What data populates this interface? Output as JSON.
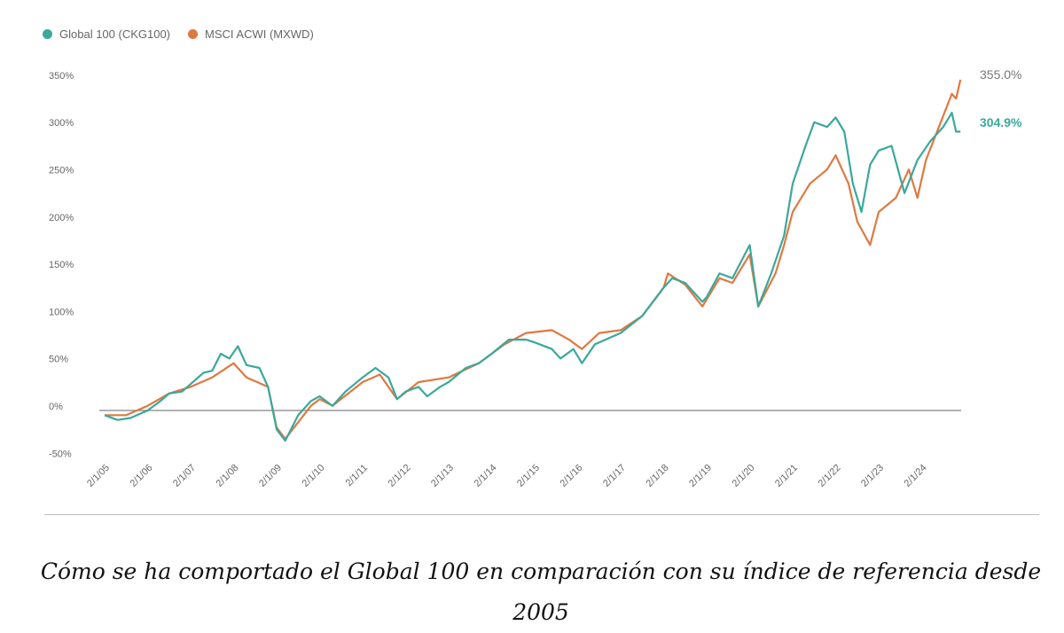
{
  "chart_data": {
    "type": "line",
    "title": "",
    "xlabel": "",
    "ylabel": "",
    "ylim": [
      -50,
      350
    ],
    "yticks": [
      "350%",
      "300%",
      "250%",
      "200%",
      "150%",
      "100%",
      "50%",
      "0%",
      "-50%"
    ],
    "ytick_values": [
      350,
      300,
      250,
      200,
      150,
      100,
      50,
      0,
      -50
    ],
    "xticks": [
      "2/1/05",
      "2/1/06",
      "2/1/07",
      "2/1/08",
      "2/1/09",
      "2/1/10",
      "2/1/11",
      "2/1/12",
      "2/1/13",
      "2/1/14",
      "2/1/15",
      "2/1/16",
      "2/1/17",
      "2/1/18",
      "2/1/19",
      "2/1/20",
      "2/1/21",
      "2/1/22",
      "2/1/23",
      "2/1/24"
    ],
    "xlim": [
      2005.0,
      2024.9
    ],
    "legend_position": "top-left",
    "series": [
      {
        "name": "Global 100 (CKG100)",
        "color": "#3aa89c",
        "end_label": "304.9%",
        "points": [
          [
            2005.0,
            -5
          ],
          [
            2005.3,
            -10
          ],
          [
            2005.6,
            -8
          ],
          [
            2006.0,
            0
          ],
          [
            2006.3,
            10
          ],
          [
            2006.5,
            18
          ],
          [
            2006.8,
            20
          ],
          [
            2007.0,
            28
          ],
          [
            2007.3,
            40
          ],
          [
            2007.5,
            42
          ],
          [
            2007.7,
            60
          ],
          [
            2007.9,
            55
          ],
          [
            2008.1,
            68
          ],
          [
            2008.3,
            48
          ],
          [
            2008.6,
            45
          ],
          [
            2008.8,
            25
          ],
          [
            2009.0,
            -20
          ],
          [
            2009.2,
            -32
          ],
          [
            2009.5,
            -5
          ],
          [
            2009.8,
            10
          ],
          [
            2010.0,
            15
          ],
          [
            2010.3,
            5
          ],
          [
            2010.6,
            20
          ],
          [
            2011.0,
            35
          ],
          [
            2011.3,
            45
          ],
          [
            2011.6,
            35
          ],
          [
            2011.8,
            12
          ],
          [
            2012.0,
            20
          ],
          [
            2012.3,
            25
          ],
          [
            2012.5,
            15
          ],
          [
            2012.8,
            25
          ],
          [
            2013.0,
            30
          ],
          [
            2013.4,
            45
          ],
          [
            2013.7,
            50
          ],
          [
            2014.0,
            60
          ],
          [
            2014.4,
            75
          ],
          [
            2014.8,
            75
          ],
          [
            2015.0,
            72
          ],
          [
            2015.4,
            65
          ],
          [
            2015.6,
            55
          ],
          [
            2015.9,
            65
          ],
          [
            2016.1,
            50
          ],
          [
            2016.4,
            70
          ],
          [
            2016.8,
            78
          ],
          [
            2017.0,
            82
          ],
          [
            2017.5,
            100
          ],
          [
            2018.0,
            130
          ],
          [
            2018.2,
            140
          ],
          [
            2018.5,
            135
          ],
          [
            2018.9,
            115
          ],
          [
            2019.0,
            120
          ],
          [
            2019.3,
            145
          ],
          [
            2019.6,
            140
          ],
          [
            2020.0,
            175
          ],
          [
            2020.2,
            110
          ],
          [
            2020.5,
            145
          ],
          [
            2020.8,
            185
          ],
          [
            2021.0,
            240
          ],
          [
            2021.3,
            280
          ],
          [
            2021.5,
            305
          ],
          [
            2021.8,
            300
          ],
          [
            2022.0,
            310
          ],
          [
            2022.2,
            295
          ],
          [
            2022.4,
            240
          ],
          [
            2022.6,
            210
          ],
          [
            2022.8,
            260
          ],
          [
            2023.0,
            275
          ],
          [
            2023.3,
            280
          ],
          [
            2023.6,
            230
          ],
          [
            2023.9,
            265
          ],
          [
            2024.2,
            285
          ],
          [
            2024.5,
            300
          ],
          [
            2024.7,
            315
          ],
          [
            2024.8,
            295
          ],
          [
            2024.9,
            295
          ]
        ]
      },
      {
        "name": "MSCI ACWI (MXWD)",
        "color": "#e07840",
        "end_label": "355.0%",
        "points": [
          [
            2005.0,
            -5
          ],
          [
            2005.5,
            -5
          ],
          [
            2006.0,
            5
          ],
          [
            2006.5,
            18
          ],
          [
            2007.0,
            25
          ],
          [
            2007.5,
            35
          ],
          [
            2008.0,
            50
          ],
          [
            2008.3,
            35
          ],
          [
            2008.8,
            25
          ],
          [
            2009.0,
            -18
          ],
          [
            2009.2,
            -30
          ],
          [
            2009.8,
            5
          ],
          [
            2010.0,
            12
          ],
          [
            2010.3,
            5
          ],
          [
            2011.0,
            30
          ],
          [
            2011.4,
            38
          ],
          [
            2011.8,
            12
          ],
          [
            2012.3,
            30
          ],
          [
            2013.0,
            35
          ],
          [
            2013.7,
            50
          ],
          [
            2014.3,
            70
          ],
          [
            2014.8,
            82
          ],
          [
            2015.4,
            85
          ],
          [
            2015.8,
            75
          ],
          [
            2016.1,
            65
          ],
          [
            2016.5,
            82
          ],
          [
            2017.0,
            85
          ],
          [
            2017.5,
            100
          ],
          [
            2018.0,
            130
          ],
          [
            2018.1,
            145
          ],
          [
            2018.5,
            133
          ],
          [
            2018.9,
            110
          ],
          [
            2019.3,
            140
          ],
          [
            2019.6,
            135
          ],
          [
            2020.0,
            165
          ],
          [
            2020.2,
            110
          ],
          [
            2020.6,
            145
          ],
          [
            2020.8,
            175
          ],
          [
            2021.0,
            210
          ],
          [
            2021.4,
            240
          ],
          [
            2021.8,
            255
          ],
          [
            2022.0,
            270
          ],
          [
            2022.3,
            240
          ],
          [
            2022.5,
            200
          ],
          [
            2022.8,
            175
          ],
          [
            2023.0,
            210
          ],
          [
            2023.4,
            225
          ],
          [
            2023.7,
            255
          ],
          [
            2023.9,
            225
          ],
          [
            2024.1,
            265
          ],
          [
            2024.4,
            300
          ],
          [
            2024.7,
            335
          ],
          [
            2024.8,
            330
          ],
          [
            2024.9,
            350
          ]
        ]
      }
    ]
  },
  "caption": "Cómo se ha comportado el Global 100 en comparación con su índice de referencia desde 2005"
}
